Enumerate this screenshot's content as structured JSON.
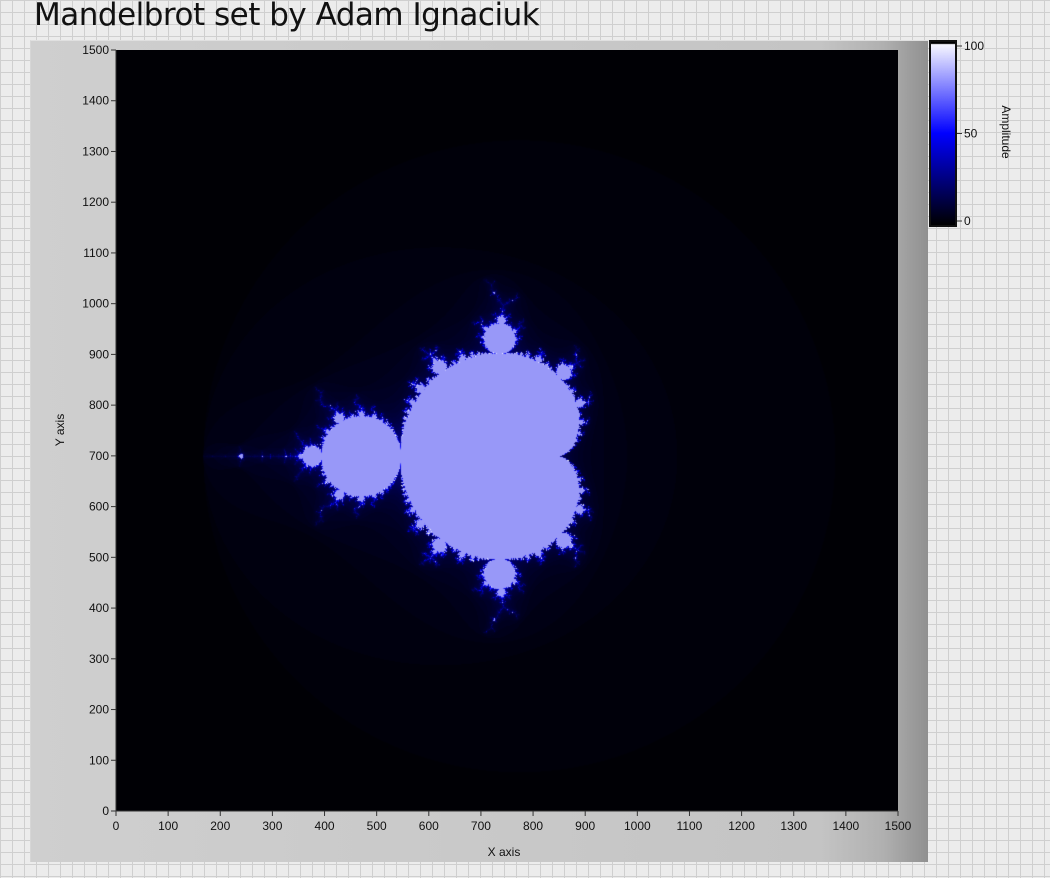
{
  "page": {
    "title": "Mandelbrot set by Adam Ignaciuk"
  },
  "chart_data": {
    "type": "heatmap",
    "title": "Mandelbrot set by Adam Ignaciuk",
    "xlabel": "X axis",
    "ylabel": "Y axis",
    "xlim": [
      0,
      1500
    ],
    "ylim": [
      0,
      1500
    ],
    "x_ticks": [
      0,
      100,
      200,
      300,
      400,
      500,
      600,
      700,
      800,
      900,
      1000,
      1100,
      1200,
      1300,
      1400,
      1500
    ],
    "y_ticks": [
      0,
      100,
      200,
      300,
      400,
      500,
      600,
      700,
      800,
      900,
      1000,
      1100,
      1200,
      1300,
      1400,
      1500
    ],
    "grid": false,
    "colorbar": {
      "label": "Amplitude",
      "range": [
        0,
        100
      ],
      "ticks": [
        0,
        50,
        100
      ],
      "placement": "right",
      "colors": [
        "#000000",
        "#0000ff",
        "#ffffff"
      ]
    },
    "set_color": "#9898f8",
    "background_color": "#000000",
    "max_iterations": 100
  }
}
